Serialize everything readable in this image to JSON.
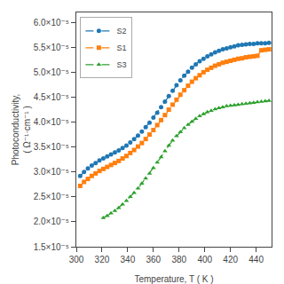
{
  "chart_data": {
    "type": "line",
    "xlabel": "Temperature, T ( K )",
    "ylabel": "Photoconductivity,\n( Ω⁻¹·cm⁻¹ )",
    "xlim": [
      300,
      452
    ],
    "ylim": [
      1.5e-05,
      6.2e-05
    ],
    "xticks": [
      300,
      320,
      340,
      360,
      380,
      400,
      420,
      440
    ],
    "yticks": [
      {
        "value": 1.5e-05,
        "label": "1.5×10⁻⁵"
      },
      {
        "value": 2e-05,
        "label": "2.0×10⁻⁵"
      },
      {
        "value": 2.5e-05,
        "label": "2.5×10⁻⁵"
      },
      {
        "value": 3e-05,
        "label": "3.0×10⁻⁵"
      },
      {
        "value": 3.5e-05,
        "label": "3.5×10⁻⁵"
      },
      {
        "value": 4e-05,
        "label": "4.0×10⁻⁵"
      },
      {
        "value": 4.5e-05,
        "label": "4.5×10⁻⁵"
      },
      {
        "value": 5e-05,
        "label": "5.0×10⁻⁵"
      },
      {
        "value": 5.5e-05,
        "label": "5.5×10⁻⁵"
      },
      {
        "value": 6e-05,
        "label": "6.0×10⁻⁵"
      }
    ],
    "grid": false,
    "legend": "upper left",
    "series": [
      {
        "name": "S2",
        "marker": "circle",
        "line_style": "dashed",
        "x": [
          303,
          306,
          309,
          312,
          315,
          318,
          321,
          324,
          327,
          330,
          333,
          336,
          339,
          342,
          345,
          348,
          351,
          354,
          357,
          360,
          363,
          366,
          369,
          372,
          375,
          378,
          381,
          384,
          387,
          390,
          393,
          396,
          399,
          402,
          405,
          408,
          411,
          414,
          417,
          420,
          423,
          426,
          429,
          432,
          435,
          438,
          441,
          444,
          447,
          450
        ],
        "values": [
          2.92e-05,
          3e-05,
          3.07e-05,
          3.13e-05,
          3.18e-05,
          3.23e-05,
          3.27e-05,
          3.31e-05,
          3.35e-05,
          3.39e-05,
          3.43e-05,
          3.48e-05,
          3.53e-05,
          3.59e-05,
          3.66e-05,
          3.73e-05,
          3.81e-05,
          3.9e-05,
          3.99e-05,
          4.09e-05,
          4.19e-05,
          4.3e-05,
          4.41e-05,
          4.52e-05,
          4.63e-05,
          4.74e-05,
          4.84e-05,
          4.93e-05,
          5.01e-05,
          5.09e-05,
          5.16e-05,
          5.22e-05,
          5.27e-05,
          5.32e-05,
          5.36e-05,
          5.4e-05,
          5.43e-05,
          5.46e-05,
          5.48e-05,
          5.5e-05,
          5.52e-05,
          5.54e-05,
          5.55e-05,
          5.56e-05,
          5.57e-05,
          5.57e-05,
          5.58e-05,
          5.58e-05,
          5.58e-05,
          5.59e-05
        ]
      },
      {
        "name": "S1",
        "marker": "square",
        "line_style": "dashed",
        "x": [
          303,
          306,
          309,
          312,
          315,
          318,
          321,
          324,
          327,
          330,
          333,
          336,
          339,
          342,
          345,
          348,
          351,
          354,
          357,
          360,
          363,
          366,
          369,
          372,
          375,
          378,
          381,
          384,
          387,
          390,
          393,
          396,
          399,
          402,
          405,
          408,
          411,
          414,
          417,
          420,
          423,
          426,
          429,
          432,
          435,
          438,
          441,
          444,
          447,
          450
        ],
        "values": [
          2.72e-05,
          2.8e-05,
          2.86e-05,
          2.92e-05,
          2.97e-05,
          3.02e-05,
          3.06e-05,
          3.1e-05,
          3.14e-05,
          3.18e-05,
          3.22e-05,
          3.27e-05,
          3.32e-05,
          3.38e-05,
          3.44e-05,
          3.51e-05,
          3.58e-05,
          3.66e-05,
          3.75e-05,
          3.84e-05,
          3.94e-05,
          4.04e-05,
          4.14e-05,
          4.25e-05,
          4.35e-05,
          4.45e-05,
          4.55e-05,
          4.64e-05,
          4.73e-05,
          4.81e-05,
          4.88e-05,
          4.94e-05,
          5e-05,
          5.05e-05,
          5.09e-05,
          5.13e-05,
          5.16e-05,
          5.19e-05,
          5.21e-05,
          5.23e-05,
          5.25e-05,
          5.27e-05,
          5.28e-05,
          5.3e-05,
          5.31e-05,
          5.32e-05,
          5.33e-05,
          5.44e-05,
          5.45e-05,
          5.46e-05
        ]
      },
      {
        "name": "S3",
        "marker": "triangle-up",
        "line_style": "dashed",
        "x": [
          321,
          324,
          327,
          330,
          333,
          336,
          339,
          342,
          345,
          348,
          351,
          354,
          357,
          360,
          363,
          366,
          369,
          372,
          375,
          378,
          381,
          384,
          387,
          390,
          393,
          396,
          399,
          402,
          405,
          408,
          411,
          414,
          417,
          420,
          423,
          426,
          429,
          432,
          435,
          438,
          441,
          444,
          447,
          450
        ],
        "values": [
          2.08e-05,
          2.12e-05,
          2.17e-05,
          2.22e-05,
          2.28e-05,
          2.35e-05,
          2.42e-05,
          2.5e-05,
          2.58e-05,
          2.67e-05,
          2.77e-05,
          2.87e-05,
          2.97e-05,
          3.08e-05,
          3.19e-05,
          3.3e-05,
          3.42e-05,
          3.53e-05,
          3.63e-05,
          3.72e-05,
          3.8e-05,
          3.88e-05,
          3.95e-05,
          4.01e-05,
          4.07e-05,
          4.12e-05,
          4.16e-05,
          4.2e-05,
          4.23e-05,
          4.26e-05,
          4.28e-05,
          4.3e-05,
          4.32e-05,
          4.33e-05,
          4.34e-05,
          4.35e-05,
          4.36e-05,
          4.37e-05,
          4.38e-05,
          4.39e-05,
          4.4e-05,
          4.41e-05,
          4.42e-05,
          4.43e-05
        ]
      }
    ]
  }
}
